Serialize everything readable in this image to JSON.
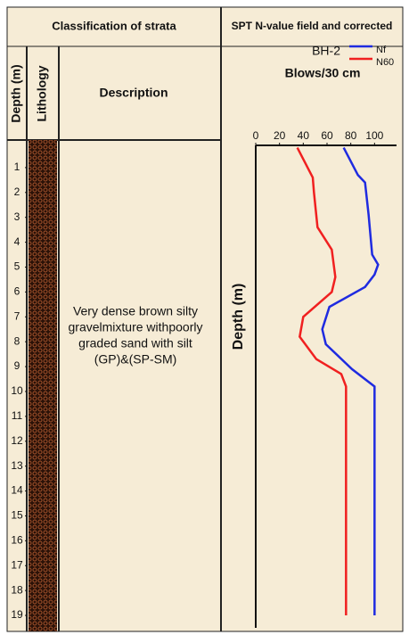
{
  "header": {
    "left": "Classification of strata",
    "right": "SPT N-value field and corrected"
  },
  "columns": {
    "depth": "Depth (m)",
    "lithology": "Lithology",
    "description": "Description"
  },
  "description_lines": [
    "Very dense brown silty",
    "gravelmixture withpoorly",
    "graded sand with silt",
    "(GP)&(SP-SM)"
  ],
  "chart_data": {
    "type": "line",
    "title": "BH-2",
    "x_label": "Blows/30 cm",
    "y_label": "Depth (m)",
    "xlim": [
      0,
      120
    ],
    "xticks": [
      0,
      20,
      40,
      60,
      80,
      100
    ],
    "ylim": [
      0,
      19.5
    ],
    "yticks": [
      1,
      2,
      3,
      4,
      5,
      6,
      7,
      8,
      9,
      10,
      11,
      12,
      13,
      14,
      15,
      16,
      17,
      18,
      19
    ],
    "series": [
      {
        "name": "Nf",
        "color": "#1f2be0",
        "depth": [
          0.2,
          1.3,
          1.6,
          2.9,
          4.5,
          4.9,
          5.3,
          5.8,
          6.6,
          7.5,
          8.1,
          9.1,
          9.8,
          19
        ],
        "values": [
          74,
          86,
          92,
          95,
          98,
          103,
          100,
          92,
          62,
          56,
          59,
          81,
          100,
          100
        ]
      },
      {
        "name": "N60",
        "color": "#f02020",
        "depth": [
          0.2,
          1.4,
          2,
          3.4,
          4.3,
          5.4,
          6,
          7,
          7.8,
          8.7,
          9.3,
          9.8,
          19
        ],
        "values": [
          35,
          48,
          49,
          52,
          64,
          67,
          64,
          40,
          37,
          51,
          72,
          76,
          76
        ]
      }
    ]
  }
}
